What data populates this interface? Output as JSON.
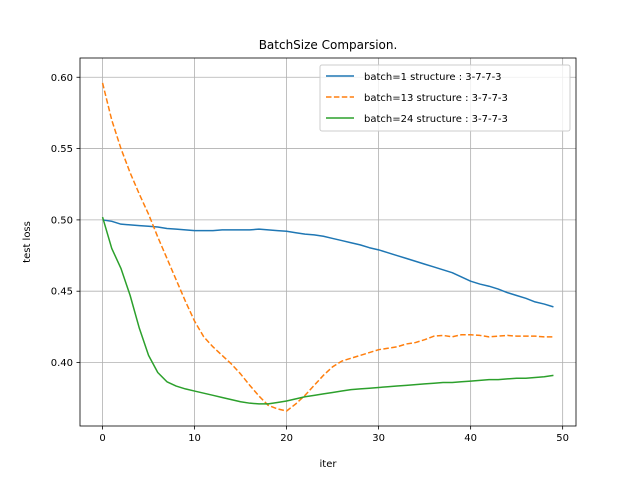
{
  "chart_data": {
    "type": "line",
    "title": "BatchSize Comparsion.",
    "xlabel": "iter",
    "ylabel": "test loss",
    "xlim": [
      -2.45,
      51.45
    ],
    "ylim": [
      0.3555,
      0.6135
    ],
    "xticks": [
      0,
      10,
      20,
      30,
      40,
      50
    ],
    "xtick_labels": [
      "0",
      "10",
      "20",
      "30",
      "40",
      "50"
    ],
    "yticks": [
      0.4,
      0.45,
      0.5,
      0.55,
      0.6
    ],
    "ytick_labels": [
      "0.40",
      "0.45",
      "0.50",
      "0.55",
      "0.60"
    ],
    "grid": true,
    "legend_position": "top-right",
    "x": [
      0,
      1,
      2,
      3,
      4,
      5,
      6,
      7,
      8,
      9,
      10,
      11,
      12,
      13,
      14,
      15,
      16,
      17,
      18,
      19,
      20,
      21,
      22,
      23,
      24,
      25,
      26,
      27,
      28,
      29,
      30,
      31,
      32,
      33,
      34,
      35,
      36,
      37,
      38,
      39,
      40,
      41,
      42,
      43,
      44,
      45,
      46,
      47,
      48,
      49
    ],
    "series": [
      {
        "name": "batch=1 structure : 3-7-7-3",
        "color": "#1f77b4",
        "dash": "solid",
        "values": [
          0.5,
          0.499,
          0.497,
          0.4965,
          0.496,
          0.4955,
          0.495,
          0.494,
          0.4935,
          0.493,
          0.4925,
          0.4925,
          0.4925,
          0.493,
          0.493,
          0.493,
          0.493,
          0.4935,
          0.493,
          0.4925,
          0.492,
          0.491,
          0.49,
          0.4895,
          0.4885,
          0.487,
          0.4855,
          0.484,
          0.4825,
          0.4805,
          0.479,
          0.477,
          0.475,
          0.473,
          0.471,
          0.469,
          0.467,
          0.465,
          0.463,
          0.46,
          0.457,
          0.455,
          0.4535,
          0.4515,
          0.449,
          0.447,
          0.445,
          0.4425,
          0.441,
          0.439
        ]
      },
      {
        "name": "batch=13 structure : 3-7-7-3",
        "color": "#ff7f0e",
        "dash": "dashed",
        "values": [
          0.596,
          0.57,
          0.55,
          0.533,
          0.518,
          0.504,
          0.488,
          0.473,
          0.458,
          0.443,
          0.429,
          0.418,
          0.411,
          0.405,
          0.399,
          0.392,
          0.384,
          0.3765,
          0.37,
          0.3675,
          0.366,
          0.371,
          0.377,
          0.384,
          0.391,
          0.397,
          0.401,
          0.403,
          0.405,
          0.407,
          0.409,
          0.41,
          0.411,
          0.413,
          0.414,
          0.416,
          0.4185,
          0.419,
          0.418,
          0.4195,
          0.4195,
          0.419,
          0.418,
          0.4185,
          0.419,
          0.4185,
          0.4185,
          0.4185,
          0.418,
          0.418
        ]
      },
      {
        "name": "batch=24 structure : 3-7-7-3",
        "color": "#2ca02c",
        "dash": "solid",
        "values": [
          0.502,
          0.48,
          0.466,
          0.447,
          0.424,
          0.405,
          0.393,
          0.3865,
          0.3835,
          0.3815,
          0.38,
          0.3785,
          0.377,
          0.3755,
          0.374,
          0.3725,
          0.3715,
          0.371,
          0.371,
          0.372,
          0.373,
          0.3745,
          0.376,
          0.377,
          0.378,
          0.379,
          0.38,
          0.381,
          0.3815,
          0.382,
          0.3825,
          0.383,
          0.3835,
          0.384,
          0.3845,
          0.385,
          0.3855,
          0.386,
          0.386,
          0.3865,
          0.387,
          0.3875,
          0.388,
          0.388,
          0.3885,
          0.389,
          0.389,
          0.3895,
          0.39,
          0.391
        ]
      }
    ]
  }
}
